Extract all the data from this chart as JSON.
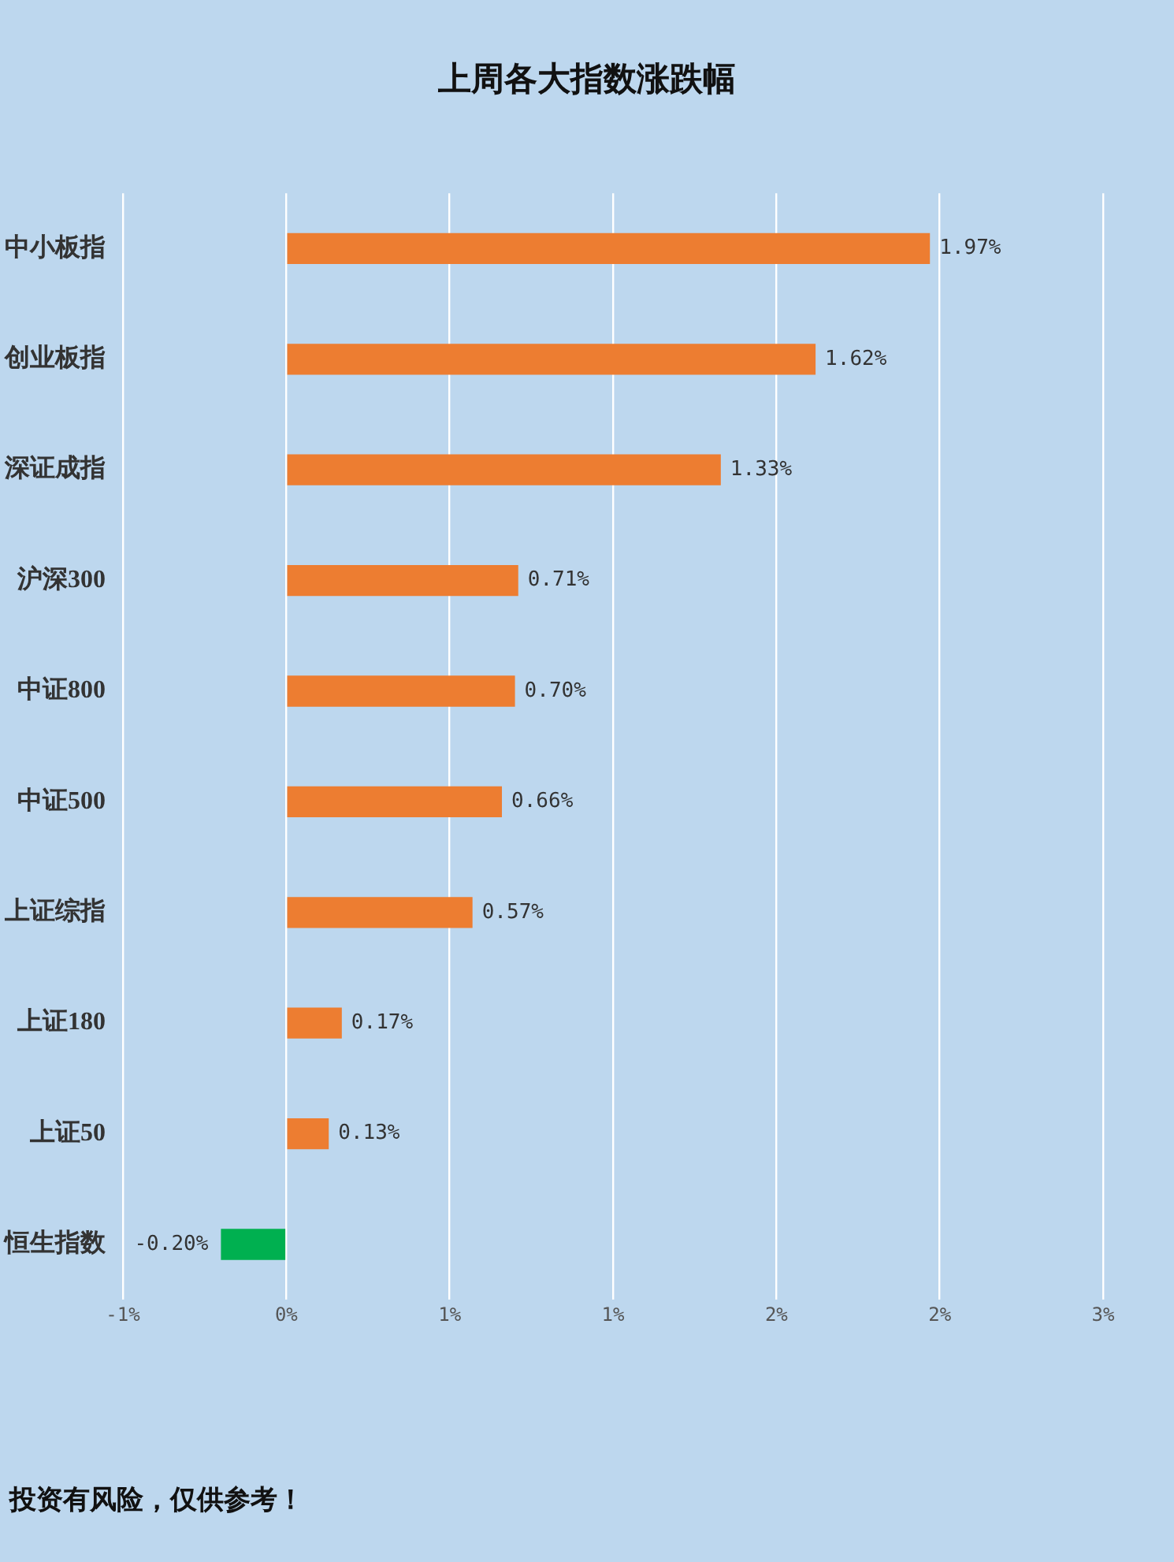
{
  "chart_data": {
    "type": "bar",
    "orientation": "horizontal",
    "title": "上周各大指数涨跌幅",
    "categories": [
      "中小板指",
      "创业板指",
      "深证成指",
      "沪深300",
      "中证800",
      "中证500",
      "上证综指",
      "上证180",
      "上证50",
      "恒生指数"
    ],
    "values": [
      1.97,
      1.62,
      1.33,
      0.71,
      0.7,
      0.66,
      0.57,
      0.17,
      0.13,
      -0.2
    ],
    "colors": [
      "#ed7d31",
      "#ed7d31",
      "#ed7d31",
      "#ed7d31",
      "#ed7d31",
      "#ed7d31",
      "#ed7d31",
      "#ed7d31",
      "#ed7d31",
      "#00b050"
    ],
    "value_labels": [
      "1.97%",
      "1.62%",
      "1.33%",
      "0.71%",
      "0.70%",
      "0.66%",
      "0.57%",
      "0.17%",
      "0.13%",
      "-0.20%"
    ],
    "xlim": [
      -0.5,
      2.5
    ],
    "xticks": [
      {
        "value": -0.5,
        "label": "-1%"
      },
      {
        "value": 0,
        "label": "0%"
      },
      {
        "value": 0.5,
        "label": "1%"
      },
      {
        "value": 1,
        "label": "1%"
      },
      {
        "value": 1.5,
        "label": "2%"
      },
      {
        "value": 2,
        "label": "2%"
      },
      {
        "value": 2.5,
        "label": "3%"
      }
    ],
    "grid": "x",
    "legend": false,
    "annotations": [
      "投资有风险，仅供参考！"
    ]
  }
}
